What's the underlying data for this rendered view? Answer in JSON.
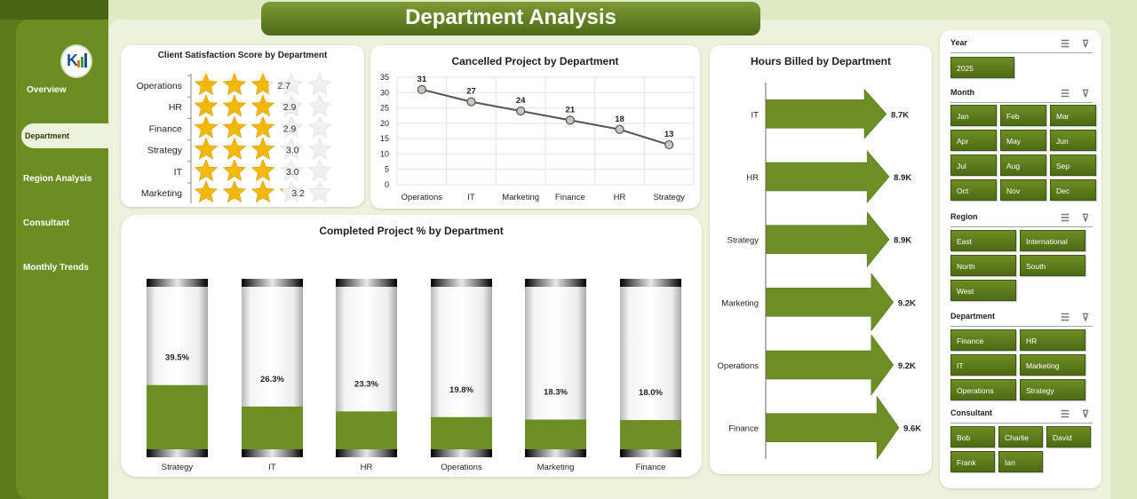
{
  "title": "Department Analysis",
  "nav": {
    "items": [
      "Overview",
      "Department",
      "Region Analysis",
      "Consultant",
      "Monthly Trends"
    ],
    "active": "Department"
  },
  "satisfaction": {
    "title": "Client Satisfaction Score by Department",
    "max_stars": 5,
    "rows": [
      {
        "dept": "Operations",
        "score": "2.7",
        "value": 2.7
      },
      {
        "dept": "HR",
        "score": "2.9",
        "value": 2.9
      },
      {
        "dept": "Finance",
        "score": "2.9",
        "value": 2.9
      },
      {
        "dept": "Strategy",
        "score": "3.0",
        "value": 3.0
      },
      {
        "dept": "IT",
        "score": "3.0",
        "value": 3.0
      },
      {
        "dept": "Marketing",
        "score": "3.2",
        "value": 3.2
      }
    ]
  },
  "cancelled": {
    "title": "Cancelled Project by Department",
    "chart_data": {
      "type": "line",
      "categories": [
        "Operations",
        "IT",
        "Marketing",
        "Finance",
        "HR",
        "Strategy"
      ],
      "values": [
        31,
        27,
        24,
        21,
        18,
        13
      ],
      "ylim": [
        0,
        35
      ],
      "yticks": [
        0,
        5,
        10,
        15,
        20,
        25,
        30,
        35
      ],
      "grid": true
    }
  },
  "hours": {
    "title": "Hours Billed by Department",
    "chart_data": {
      "type": "bar",
      "orientation": "horizontal",
      "categories": [
        "IT",
        "HR",
        "Strategy",
        "Marketing",
        "Operations",
        "Finance"
      ],
      "values": [
        8.7,
        8.9,
        8.9,
        9.2,
        9.2,
        9.6
      ],
      "labels": [
        "8.7K",
        "8.9K",
        "8.9K",
        "9.2K",
        "9.2K",
        "9.6K"
      ]
    }
  },
  "completed": {
    "title": "Completed Project % by Department",
    "chart_data": {
      "type": "bar",
      "categories": [
        "Strategy",
        "IT",
        "HR",
        "Operations",
        "Marketing",
        "Finance"
      ],
      "values": [
        39.5,
        26.3,
        23.3,
        19.8,
        18.3,
        18.0
      ],
      "labels": [
        "39.5%",
        "26.3%",
        "23.3%",
        "19.8%",
        "18.3%",
        "18.0%"
      ],
      "ylim": [
        0,
        100
      ]
    }
  },
  "slicers": {
    "year": {
      "label": "Year",
      "items": [
        "2025"
      ]
    },
    "month": {
      "label": "Month",
      "items": [
        "Jan",
        "Feb",
        "Mar",
        "Apr",
        "May",
        "Jun",
        "Jul",
        "Aug",
        "Sep",
        "Oct",
        "Nov",
        "Dec"
      ]
    },
    "region": {
      "label": "Region",
      "items": [
        "East",
        "International",
        "North",
        "South",
        "West"
      ]
    },
    "department": {
      "label": "Department",
      "items": [
        "Finance",
        "HR",
        "IT",
        "Marketing",
        "Operations",
        "Strategy"
      ]
    },
    "consultant": {
      "label": "Consultant",
      "items": [
        "Bob",
        "Charlie",
        "David",
        "Frank",
        "Ian"
      ]
    }
  },
  "colors": {
    "accent": "#5c7a1c",
    "bar": "#6c8e24",
    "star": "#f5b800"
  }
}
